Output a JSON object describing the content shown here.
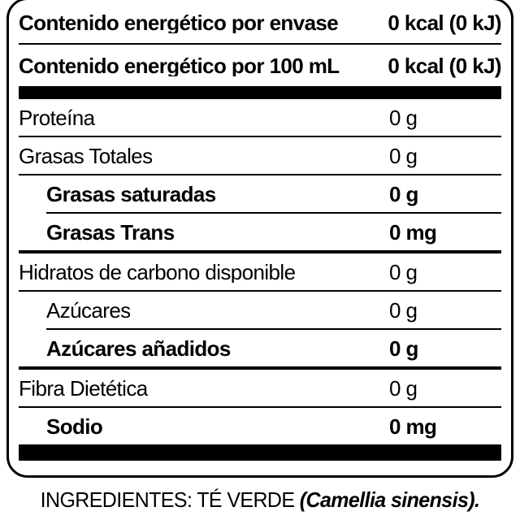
{
  "label_box": {
    "energy_rows": [
      {
        "label": "Contenido energético por envase",
        "value": "0 kcal (0 kJ)"
      },
      {
        "label": "Contenido energético por 100 mL",
        "value": "0 kcal (0 kJ)"
      }
    ],
    "nutrient_rows": [
      {
        "label": "Proteína",
        "value": "0 g",
        "bold": false,
        "indent": false,
        "sep": "full"
      },
      {
        "label": "Grasas Totales",
        "value": "0 g",
        "bold": false,
        "indent": false,
        "sep": "full"
      },
      {
        "label": "Grasas saturadas",
        "value": "0 g",
        "bold": true,
        "indent": true,
        "sep": "indent"
      },
      {
        "label": "Grasas Trans",
        "value": "0 mg",
        "bold": true,
        "indent": true,
        "sep": "full-medium"
      },
      {
        "label": "Hidratos de carbono disponible",
        "value": "0 g",
        "bold": false,
        "indent": false,
        "sep": "full"
      },
      {
        "label": "Azúcares",
        "value": "0 g",
        "bold": false,
        "indent": true,
        "sep": "indent"
      },
      {
        "label": "Azúcares añadidos",
        "value": "0 g",
        "bold": true,
        "indent": true,
        "sep": "full-medium"
      },
      {
        "label": "Fibra Dietética",
        "value": "0 g",
        "bold": false,
        "indent": false,
        "sep": "full"
      },
      {
        "label": "Sodio",
        "value": "0 mg",
        "bold": true,
        "indent": true,
        "sep": "none"
      }
    ]
  },
  "ingredients": {
    "prefix": "INGREDIENTES: TÉ VERDE",
    "scientific": "(Camellia sinensis)."
  },
  "colors": {
    "text": "#000000",
    "background": "#ffffff",
    "border": "#000000"
  }
}
